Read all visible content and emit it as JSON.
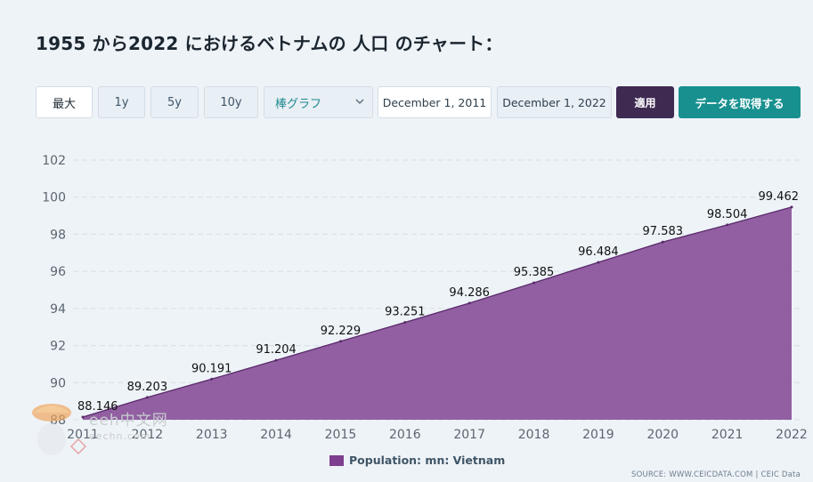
{
  "title": "1955 から2022 におけるベトナムの 人口 のチャート：",
  "range_buttons": [
    {
      "label": "最大",
      "active": true
    },
    {
      "label": "1y",
      "active": false
    },
    {
      "label": "5y",
      "active": false
    },
    {
      "label": "10y",
      "active": false
    }
  ],
  "chart_type_select": {
    "value": "棒グラフ"
  },
  "date_from": "December 1, 2011",
  "date_to": "December 1, 2022",
  "apply_label": "適用",
  "get_data_label": "データを取得する",
  "legend": {
    "label": "Population: mn: Vietnam",
    "color": "#7e3f8f"
  },
  "source": "SOURCE: WWW.CEICDATA.COM | CEIC Data",
  "watermark": {
    "text": "eeh中文网",
    "sub": "eechn.com"
  },
  "chart_data": {
    "type": "area",
    "x": [
      "2011",
      "2012",
      "2013",
      "2014",
      "2015",
      "2016",
      "2017",
      "2018",
      "2019",
      "2020",
      "2021",
      "2022"
    ],
    "values": [
      88.146,
      89.203,
      90.191,
      91.204,
      92.229,
      93.251,
      94.286,
      95.385,
      96.484,
      97.583,
      98.504,
      99.462
    ],
    "value_labels": [
      "88.146",
      "89.203",
      "90.191",
      "91.204",
      "92.229",
      "93.251",
      "94.286",
      "95.385",
      "96.484",
      "97.583",
      "98.504",
      "99.462"
    ],
    "yticks": [
      "88",
      "90",
      "92",
      "94",
      "96",
      "98",
      "100",
      "102"
    ],
    "ylim": [
      88,
      102
    ],
    "series": [
      {
        "name": "Population: mn: Vietnam",
        "color": "#7e3f8f"
      }
    ],
    "grid": true,
    "legend_position": "bottom-center"
  }
}
